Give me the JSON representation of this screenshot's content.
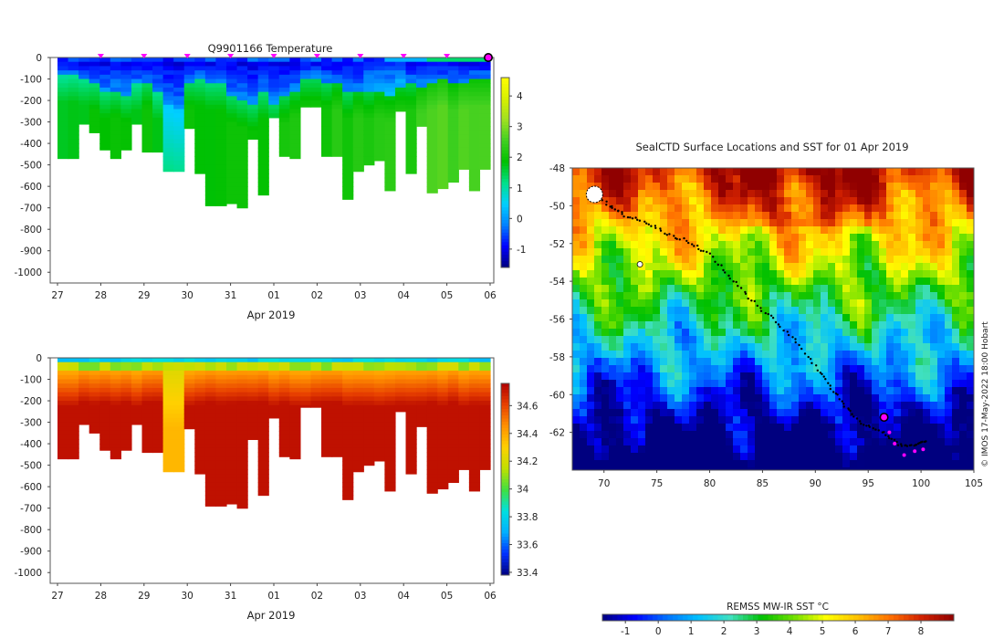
{
  "colors": {
    "frame": "#555555",
    "track": "#000000",
    "profile_marker": "#ff00ff",
    "highlight": "#ff00ff",
    "temp_scale": [
      "#00007f",
      "#0000ff",
      "#0080ff",
      "#00d0ff",
      "#00e08a",
      "#00c000",
      "#40d020",
      "#a0e020",
      "#d8f000",
      "#ffff00"
    ],
    "sal_scale": [
      "#00007f",
      "#0030ff",
      "#00b0ff",
      "#00e0e0",
      "#40e040",
      "#c0e000",
      "#ffd000",
      "#ff9000",
      "#e84000",
      "#b00000"
    ],
    "sst_scale": [
      "#00007f",
      "#0000ff",
      "#0070ff",
      "#00c0ff",
      "#40e0c0",
      "#00c000",
      "#70e000",
      "#ffff00",
      "#ffc000",
      "#ff7000",
      "#d02000",
      "#900000"
    ]
  },
  "chart_data": [
    {
      "id": "temperature",
      "type": "heatmap",
      "title": "Q9901166  Temperature",
      "xlabel": "Apr 2019",
      "ylabel": "",
      "x_ticks": [
        "27",
        "28",
        "29",
        "30",
        "31",
        "01",
        "02",
        "03",
        "04",
        "05",
        "06"
      ],
      "y_ticks": [
        "0",
        "-100",
        "-200",
        "-300",
        "-400",
        "-500",
        "-600",
        "-700",
        "-800",
        "-900",
        "-1000"
      ],
      "ylim": [
        -1050,
        0
      ],
      "xlim": [
        0,
        10
      ],
      "colorbar_ticks": [
        "4",
        "3",
        "2",
        "1",
        "0",
        "-1"
      ],
      "colorbar_range": [
        -1.6,
        4.6
      ],
      "profile_marker_x": [
        1,
        2,
        3,
        4,
        5,
        6,
        7,
        8,
        9
      ],
      "current_profile_x": 10,
      "profile_max_depth": [
        -470,
        -470,
        -310,
        -350,
        -430,
        -470,
        -430,
        -310,
        -440,
        -440,
        -530,
        -530,
        -330,
        -540,
        -690,
        -690,
        -680,
        -700,
        -380,
        -640,
        -280,
        -460,
        -470,
        -230,
        -230,
        -460,
        -460,
        -660,
        -530,
        -500,
        -480,
        -620,
        -250,
        -540,
        -320,
        -630,
        -610,
        -580,
        -520,
        -620,
        -520
      ],
      "thermocline_depth": [
        -80,
        -80,
        -90,
        -120,
        -150,
        -150,
        -170,
        -120,
        -110,
        -160,
        -210,
        -230,
        -110,
        -90,
        -110,
        -120,
        -180,
        -200,
        -210,
        -160,
        -210,
        -180,
        -150,
        -90,
        -90,
        -110,
        -120,
        -160,
        -150,
        -160,
        -150,
        -170,
        -130,
        -120,
        -130,
        -110,
        -100,
        -120,
        -110,
        -100,
        -100
      ]
    },
    {
      "id": "salinity",
      "type": "heatmap",
      "title": "",
      "xlabel": "Apr 2019",
      "ylabel": "",
      "x_ticks": [
        "27",
        "28",
        "29",
        "30",
        "31",
        "01",
        "02",
        "03",
        "04",
        "05",
        "06"
      ],
      "y_ticks": [
        "0",
        "-100",
        "-200",
        "-300",
        "-400",
        "-500",
        "-600",
        "-700",
        "-800",
        "-900",
        "-1000"
      ],
      "ylim": [
        -1050,
        0
      ],
      "xlim": [
        0,
        10
      ],
      "colorbar_ticks": [
        "34.6",
        "34.4",
        "34.2",
        "34",
        "33.8",
        "33.6",
        "33.4"
      ],
      "colorbar_range": [
        33.38,
        34.76
      ],
      "profile_max_depth": [
        -470,
        -470,
        -310,
        -350,
        -430,
        -470,
        -430,
        -310,
        -440,
        -440,
        -530,
        -530,
        -330,
        -540,
        -690,
        -690,
        -680,
        -700,
        -380,
        -640,
        -280,
        -460,
        -470,
        -230,
        -230,
        -460,
        -460,
        -660,
        -530,
        -500,
        -480,
        -620,
        -250,
        -540,
        -320,
        -630,
        -610,
        -580,
        -520,
        -620,
        -520
      ]
    },
    {
      "id": "sst-map",
      "type": "heatmap",
      "title": "SealCTD Surface Locations and SST for 01 Apr 2019",
      "xlabel": "",
      "ylabel": "",
      "x_ticks": [
        "70",
        "75",
        "80",
        "85",
        "90",
        "95",
        "100",
        "105"
      ],
      "y_ticks": [
        "-48",
        "-50",
        "-52",
        "-54",
        "-56",
        "-58",
        "-60",
        "-62"
      ],
      "xlim": [
        67,
        105
      ],
      "ylim": [
        -64,
        -48
      ],
      "track": [
        [
          69.0,
          -49.2
        ],
        [
          70.5,
          -50.0
        ],
        [
          72.0,
          -50.5
        ],
        [
          74.0,
          -50.9
        ],
        [
          76.0,
          -51.5
        ],
        [
          78.0,
          -51.9
        ],
        [
          80.0,
          -52.6
        ],
        [
          82.0,
          -53.8
        ],
        [
          84.0,
          -55.0
        ],
        [
          86.0,
          -56.0
        ],
        [
          88.0,
          -57.1
        ],
        [
          90.0,
          -58.5
        ],
        [
          91.5,
          -59.7
        ],
        [
          93.0,
          -60.7
        ],
        [
          94.5,
          -61.6
        ],
        [
          96.5,
          -62.0
        ],
        [
          98.0,
          -62.7
        ],
        [
          99.5,
          -62.7
        ],
        [
          100.5,
          -62.5
        ]
      ],
      "recent_track": [
        [
          96.5,
          -61.2
        ],
        [
          97.0,
          -62.0
        ],
        [
          97.5,
          -62.6
        ],
        [
          98.4,
          -63.2
        ],
        [
          99.4,
          -63.0
        ],
        [
          100.2,
          -62.9
        ]
      ],
      "current_position": [
        96.5,
        -61.2
      ],
      "colorbar_label": "REMSS MW-IR SST °C",
      "colorbar_ticks": [
        "-1",
        "0",
        "1",
        "2",
        "3",
        "4",
        "5",
        "6",
        "7",
        "8"
      ],
      "colorbar_range": [
        -1.7,
        9.0
      ],
      "credit": "© IMOS 17-May-2022 18:00 Hobart"
    }
  ]
}
